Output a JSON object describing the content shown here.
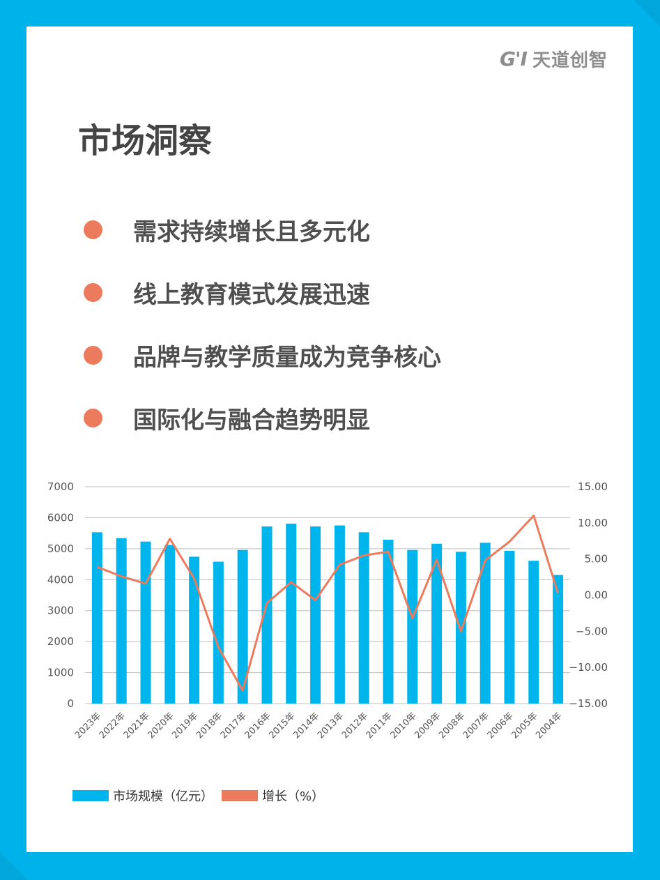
{
  "brand": {
    "mark": "G'I",
    "name": "天道创智"
  },
  "title": "市场洞察",
  "bullets": [
    "需求持续增长且多元化",
    "线上教育模式发展迅速",
    "品牌与教学质量成为竞争核心",
    "国际化与融合趋势明显"
  ],
  "colors": {
    "bar": "#00b5ec",
    "line": "#ec7b5e",
    "background": "#00b2ea",
    "bullet": "#ec7b5e"
  },
  "chart_data": {
    "type": "bar",
    "categories": [
      "2023年",
      "2022年",
      "2021年",
      "2020年",
      "2019年",
      "2018年",
      "2017年",
      "2016年",
      "2015年",
      "2014年",
      "2013年",
      "2012年",
      "2011年",
      "2010年",
      "2009年",
      "2008年",
      "2007年",
      "2006年",
      "2005年",
      "2004年"
    ],
    "series": [
      {
        "name": "市场规模（亿元）",
        "type": "bar",
        "axis": "left",
        "values": [
          5530,
          5340,
          5230,
          5120,
          4740,
          4580,
          4960,
          5720,
          5810,
          5720,
          5750,
          5530,
          5290,
          4960,
          5160,
          4900,
          5190,
          4930,
          4610,
          4150
        ]
      },
      {
        "name": "增长（%）",
        "type": "line",
        "axis": "right",
        "values": [
          3.9,
          2.6,
          1.6,
          7.8,
          2.3,
          -7.2,
          -13.2,
          -1.1,
          1.8,
          -0.7,
          4.2,
          5.5,
          6.0,
          -3.2,
          4.9,
          -5.0,
          4.8,
          7.4,
          11.0,
          0.3
        ]
      }
    ],
    "ylim": [
      0,
      7000
    ],
    "y_ticks": [
      "0",
      "1000",
      "2000",
      "3000",
      "4000",
      "5000",
      "6000",
      "7000"
    ],
    "y2lim": [
      -15,
      15
    ],
    "y2_ticks": [
      "-15.00",
      "-10.00",
      "-5.00",
      "0.00",
      "5.00",
      "10.00",
      "15.00"
    ],
    "grid": true,
    "legend": "bottom-left"
  }
}
